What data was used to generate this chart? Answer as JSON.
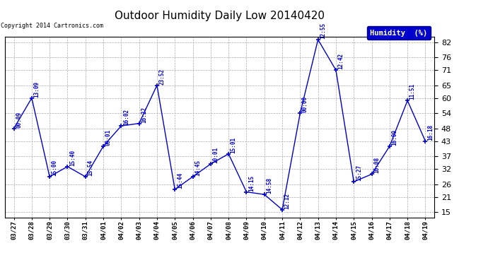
{
  "title": "Outdoor Humidity Daily Low 20140420",
  "copyright": "Copyright 2014 Cartronics.com",
  "legend_label": "Humidity  (%)",
  "background_color": "#ffffff",
  "plot_bg_color": "#ffffff",
  "line_color": "#0000cc",
  "marker_color": "#0000cc",
  "label_color": "#0000cc",
  "grid_color": "#aaaaaa",
  "ylim": [
    13,
    84
  ],
  "yticks": [
    15,
    21,
    26,
    32,
    37,
    43,
    48,
    54,
    60,
    65,
    71,
    76,
    82
  ],
  "points": [
    {
      "x": 0,
      "date": "03/27",
      "value": 48,
      "label": "00:09"
    },
    {
      "x": 1,
      "date": "03/28",
      "value": 60,
      "label": "13:09"
    },
    {
      "x": 2,
      "date": "03/29",
      "value": 29,
      "label": "15:00"
    },
    {
      "x": 3,
      "date": "03/30",
      "value": 33,
      "label": "15:40"
    },
    {
      "x": 4,
      "date": "03/31",
      "value": 29,
      "label": "15:54"
    },
    {
      "x": 5,
      "date": "04/01",
      "value": 41,
      "label": "09:01"
    },
    {
      "x": 6,
      "date": "04/02",
      "value": 49,
      "label": "16:02"
    },
    {
      "x": 7,
      "date": "04/03",
      "value": 50,
      "label": "16:22"
    },
    {
      "x": 8,
      "date": "04/04",
      "value": 65,
      "label": "23:52"
    },
    {
      "x": 9,
      "date": "04/05",
      "value": 24,
      "label": "15:44"
    },
    {
      "x": 10,
      "date": "04/06",
      "value": 29,
      "label": "14:45"
    },
    {
      "x": 11,
      "date": "04/07",
      "value": 34,
      "label": "10:01"
    },
    {
      "x": 12,
      "date": "04/08",
      "value": 38,
      "label": "15:01"
    },
    {
      "x": 13,
      "date": "04/09",
      "value": 23,
      "label": "14:15"
    },
    {
      "x": 14,
      "date": "04/10",
      "value": 22,
      "label": "14:58"
    },
    {
      "x": 15,
      "date": "04/11",
      "value": 16,
      "label": "12:12"
    },
    {
      "x": 16,
      "date": "04/12",
      "value": 54,
      "label": "00:00"
    },
    {
      "x": 17,
      "date": "04/13",
      "value": 83,
      "label": "12:55"
    },
    {
      "x": 18,
      "date": "04/14",
      "value": 71,
      "label": "12:42"
    },
    {
      "x": 19,
      "date": "04/15",
      "value": 27,
      "label": "15:27"
    },
    {
      "x": 20,
      "date": "04/16",
      "value": 30,
      "label": "16:08"
    },
    {
      "x": 21,
      "date": "04/17",
      "value": 41,
      "label": "16:09"
    },
    {
      "x": 22,
      "date": "04/18",
      "value": 59,
      "label": "11:51"
    },
    {
      "x": 23,
      "date": "04/19",
      "value": 43,
      "label": "16:18"
    }
  ]
}
